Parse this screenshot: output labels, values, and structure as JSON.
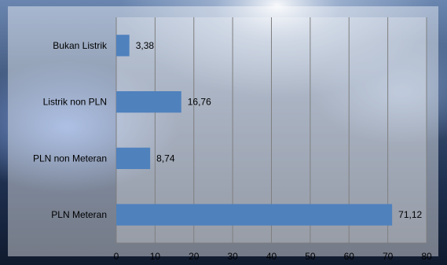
{
  "chart_data": {
    "type": "bar",
    "orientation": "horizontal",
    "categories": [
      "Bukan Listrik",
      "Listrik non PLN",
      "PLN non Meteran",
      "PLN Meteran"
    ],
    "values": [
      3.38,
      16.76,
      8.74,
      71.12
    ],
    "data_labels": [
      "3,38",
      "16,76",
      "8,74",
      "71,12"
    ],
    "xlim": [
      0,
      80
    ],
    "x_ticks": [
      0,
      10,
      20,
      30,
      40,
      50,
      60,
      70,
      80
    ],
    "grid": true,
    "legend": "none",
    "bar_color": "#4f81bd",
    "background": "photo of a street at night with blue lights"
  }
}
